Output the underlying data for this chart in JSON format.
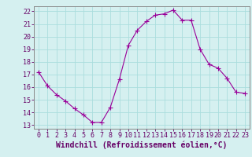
{
  "x": [
    0,
    1,
    2,
    3,
    4,
    5,
    6,
    7,
    8,
    9,
    10,
    11,
    12,
    13,
    14,
    15,
    16,
    17,
    18,
    19,
    20,
    21,
    22,
    23
  ],
  "y": [
    17.2,
    16.1,
    15.4,
    14.9,
    14.3,
    13.8,
    13.2,
    13.2,
    14.4,
    16.6,
    19.3,
    20.5,
    21.2,
    21.7,
    21.8,
    22.1,
    21.3,
    21.3,
    19.0,
    17.8,
    17.5,
    16.7,
    15.6,
    15.5
  ],
  "line_color": "#990099",
  "marker": "+",
  "marker_size": 4,
  "bg_color": "#d5f0f0",
  "grid_color": "#aadddd",
  "xlabel": "Windchill (Refroidissement éolien,°C)",
  "xlim_min": -0.5,
  "xlim_max": 23.5,
  "ylim_min": 12.7,
  "ylim_max": 22.4,
  "yticks": [
    13,
    14,
    15,
    16,
    17,
    18,
    19,
    20,
    21,
    22
  ],
  "xticks": [
    0,
    1,
    2,
    3,
    4,
    5,
    6,
    7,
    8,
    9,
    10,
    11,
    12,
    13,
    14,
    15,
    16,
    17,
    18,
    19,
    20,
    21,
    22,
    23
  ],
  "tick_color": "#660066",
  "label_color": "#660066",
  "spine_color": "#888888",
  "xlabel_fontsize": 7,
  "tick_fontsize": 6
}
